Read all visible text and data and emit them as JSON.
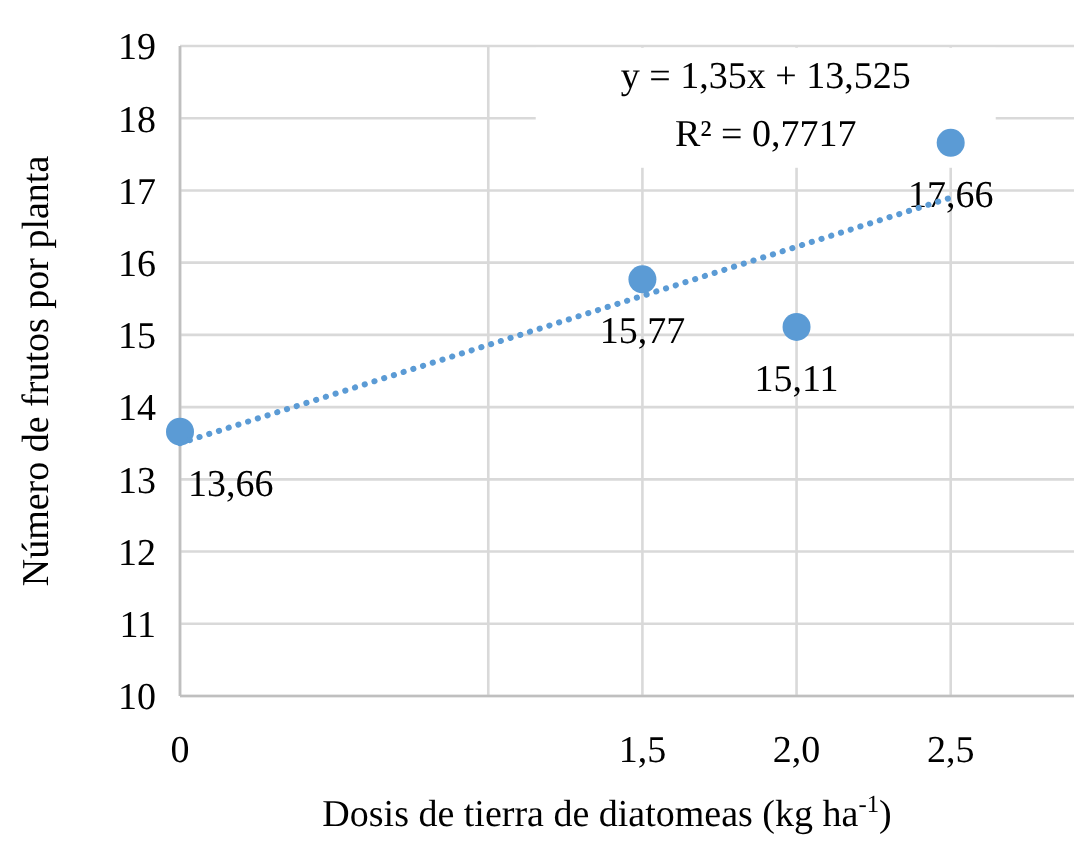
{
  "chart_data": {
    "type": "scatter",
    "xlabel": "Dosis de tierra de diatomeas (kg ha$^{-1}$)",
    "ylabel": "Número de frutos por planta",
    "x": [
      0,
      1.5,
      2,
      2.5
    ],
    "series": [
      {
        "type": "scatter",
        "color": "#5b9bd5",
        "values": [
          13.66,
          15.77,
          15.11,
          17.66
        ],
        "value_labels": [
          "13,66",
          "15,77",
          "15,11",
          "17,66"
        ],
        "marker": "circle"
      },
      {
        "type": "line",
        "color": "#5b9bd5",
        "x": [
          0,
          2.5
        ],
        "values": [
          13.5,
          16.9
        ],
        "line_style": "dotted",
        "marker": "none"
      }
    ],
    "annotations": [
      "y = 1,35x + 13,525",
      "R² = 0,7717"
    ],
    "xlim": [
      0,
      2.9
    ],
    "xticks": [
      {
        "value": 0,
        "label": "0"
      },
      {
        "value": 1,
        "label": null
      },
      {
        "value": 1.5,
        "label": "1,5"
      },
      {
        "value": 2,
        "label": "2,0"
      },
      {
        "value": 2.5,
        "label": "2,5"
      }
    ],
    "ylim": [
      10,
      19
    ],
    "yticks": [
      10,
      11,
      12,
      13,
      14,
      15,
      16,
      17,
      18,
      19
    ],
    "grid": true
  }
}
